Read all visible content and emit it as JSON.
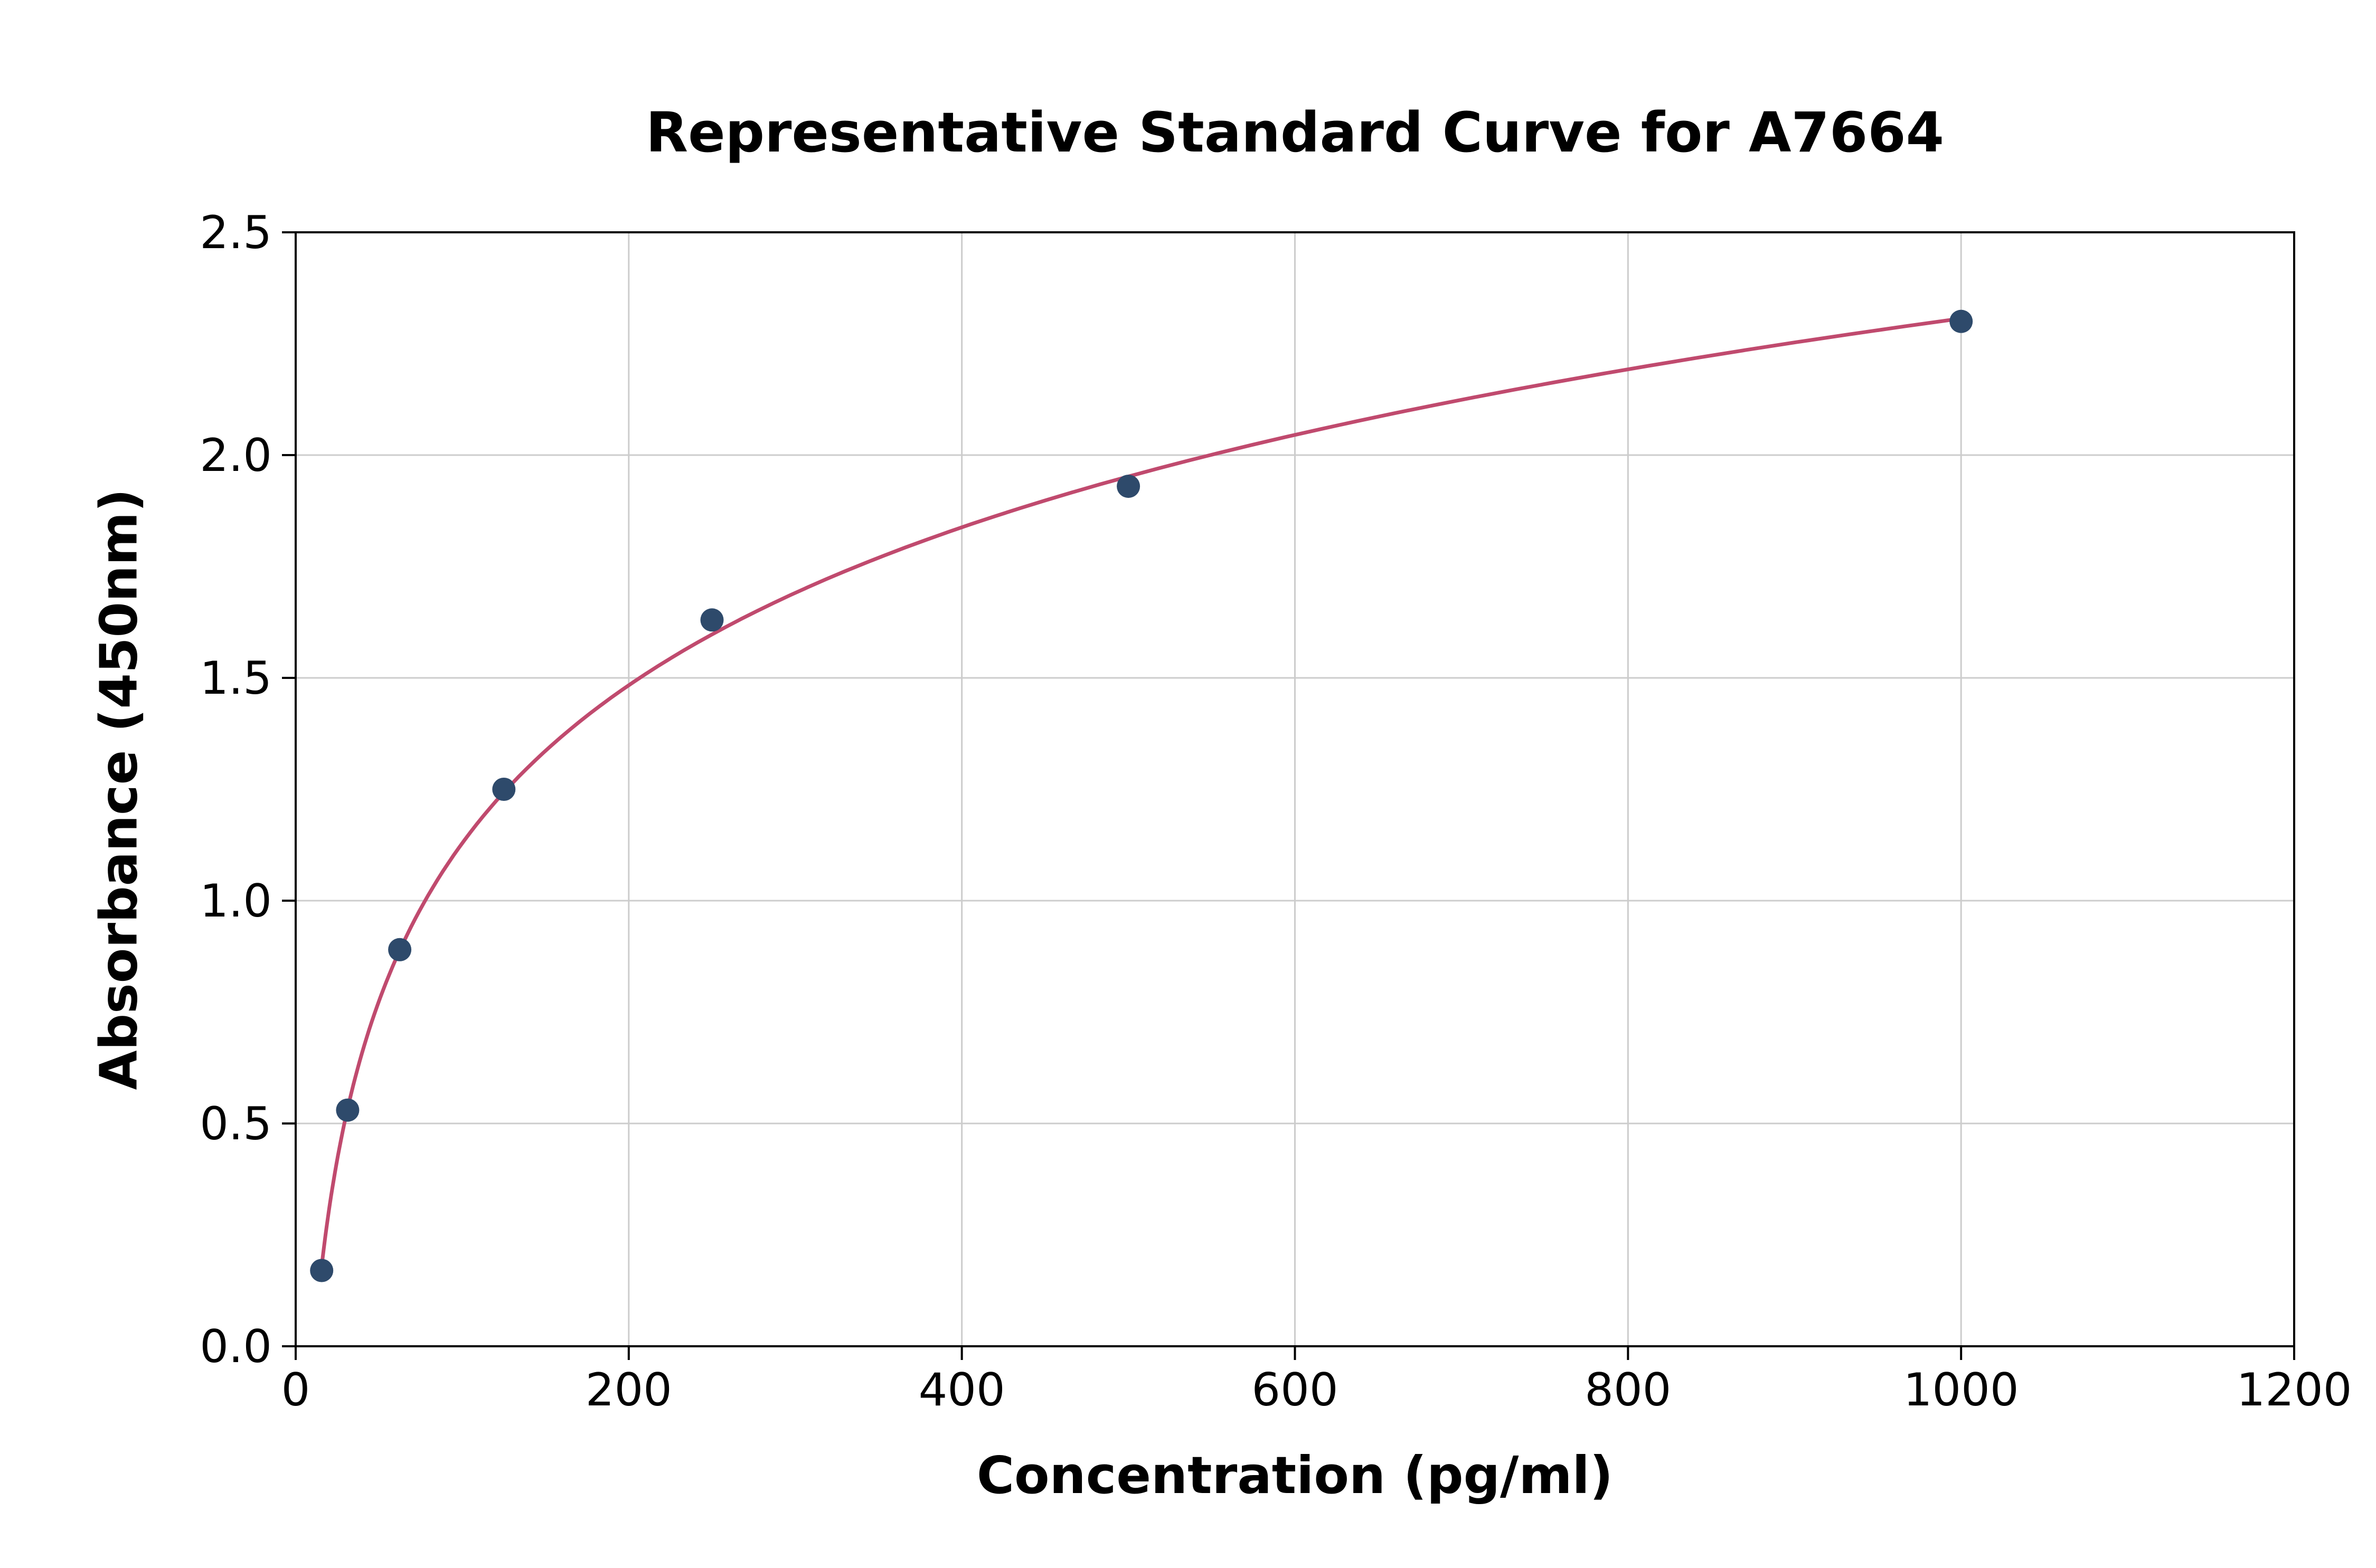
{
  "chart_data": {
    "type": "scatter",
    "title": "Representative Standard Curve for A7664",
    "xlabel": "Concentration (pg/ml)",
    "ylabel": "Absorbance (450nm)",
    "xlim": [
      0,
      1200
    ],
    "ylim": [
      0,
      2.5
    ],
    "x_ticks": [
      0,
      200,
      400,
      600,
      800,
      1000,
      1200
    ],
    "x_tick_labels": [
      "0",
      "200",
      "400",
      "600",
      "800",
      "1000",
      "1200"
    ],
    "y_ticks": [
      0,
      0.5,
      1.0,
      1.5,
      2.0,
      2.5
    ],
    "y_tick_labels": [
      "0.0",
      "0.5",
      "1.0",
      "1.5",
      "2.0",
      "2.5"
    ],
    "grid": true,
    "legend_position": "none",
    "points": [
      {
        "x": 15.6,
        "y": 0.17
      },
      {
        "x": 31.2,
        "y": 0.53
      },
      {
        "x": 62.5,
        "y": 0.89
      },
      {
        "x": 125,
        "y": 1.25
      },
      {
        "x": 250,
        "y": 1.63
      },
      {
        "x": 500,
        "y": 1.93
      },
      {
        "x": 1000,
        "y": 2.3
      }
    ],
    "curve": {
      "description": "smooth logarithmic fit through the standard points",
      "x_start": 15.6,
      "x_end": 1000
    },
    "colors": {
      "points": "#2e4a6b",
      "curve": "#c04a6e",
      "grid": "#cccccc",
      "axes": "#000000",
      "text": "#000000",
      "background": "#ffffff"
    }
  }
}
